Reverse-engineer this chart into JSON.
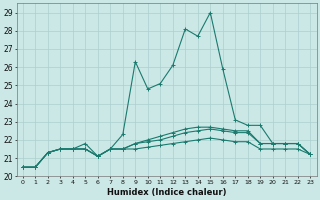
{
  "xlabel": "Humidex (Indice chaleur)",
  "bg_color": "#cce8e6",
  "grid_color": "#aacfcd",
  "line_color": "#1a7a6e",
  "xlim": [
    -0.5,
    23.5
  ],
  "ylim": [
    20,
    29.5
  ],
  "xticks": [
    0,
    1,
    2,
    3,
    4,
    5,
    6,
    7,
    8,
    9,
    10,
    11,
    12,
    13,
    14,
    15,
    16,
    17,
    18,
    19,
    20,
    21,
    22,
    23
  ],
  "yticks": [
    20,
    21,
    22,
    23,
    24,
    25,
    26,
    27,
    28,
    29
  ],
  "series": [
    [
      20.5,
      20.5,
      21.3,
      21.5,
      21.5,
      21.8,
      21.1,
      21.5,
      22.3,
      26.3,
      24.8,
      25.1,
      26.1,
      28.1,
      27.7,
      29.0,
      25.9,
      23.1,
      22.8,
      22.8,
      21.8,
      21.8,
      21.8,
      21.2
    ],
    [
      20.5,
      20.5,
      21.3,
      21.5,
      21.5,
      21.5,
      21.1,
      21.5,
      21.5,
      21.8,
      22.0,
      22.2,
      22.4,
      22.6,
      22.7,
      22.7,
      22.6,
      22.5,
      22.5,
      21.8,
      21.8,
      21.8,
      21.8,
      21.2
    ],
    [
      20.5,
      20.5,
      21.3,
      21.5,
      21.5,
      21.5,
      21.1,
      21.5,
      21.5,
      21.8,
      21.9,
      22.0,
      22.2,
      22.4,
      22.5,
      22.6,
      22.5,
      22.4,
      22.4,
      21.8,
      21.8,
      21.8,
      21.8,
      21.2
    ],
    [
      20.5,
      20.5,
      21.3,
      21.5,
      21.5,
      21.5,
      21.1,
      21.5,
      21.5,
      21.5,
      21.6,
      21.7,
      21.8,
      21.9,
      22.0,
      22.1,
      22.0,
      21.9,
      21.9,
      21.5,
      21.5,
      21.5,
      21.5,
      21.2
    ]
  ]
}
